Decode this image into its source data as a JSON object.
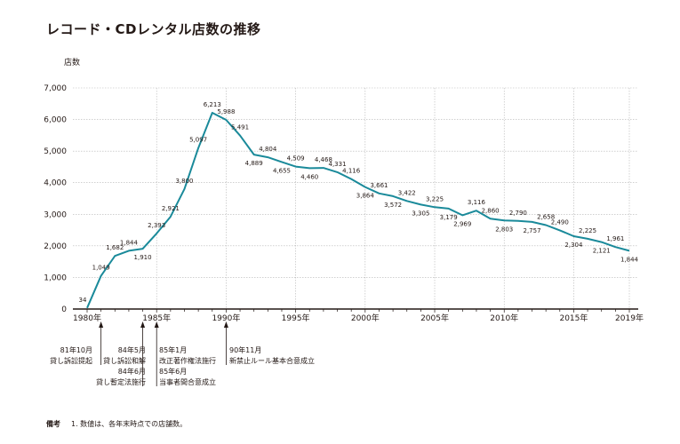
{
  "title": "レコード・CDレンタル店数の推移",
  "chart_data": {
    "type": "line",
    "ylabel": "店数",
    "ylim": [
      0,
      7000
    ],
    "yticks": [
      "0",
      "1,000",
      "2,000",
      "3,000",
      "4,000",
      "5,000",
      "6,000",
      "7,000"
    ],
    "xlim": [
      1980,
      2019
    ],
    "xticks": [
      {
        "year": 1980,
        "label": "1980年"
      },
      {
        "year": 1985,
        "label": "1985年"
      },
      {
        "year": 1990,
        "label": "1990年"
      },
      {
        "year": 1995,
        "label": "1995年"
      },
      {
        "year": 2000,
        "label": "2000年"
      },
      {
        "year": 2005,
        "label": "2005年"
      },
      {
        "year": 2010,
        "label": "2010年"
      },
      {
        "year": 2015,
        "label": "2015年"
      },
      {
        "year": 2019,
        "label": "2019年"
      }
    ],
    "grid": true,
    "line_color": "#1a8a9a",
    "points": [
      {
        "x": 1980,
        "y": 34,
        "label": "34",
        "pos": "above"
      },
      {
        "x": 1981,
        "y": 1049,
        "label": "1,049",
        "pos": "above"
      },
      {
        "x": 1982,
        "y": 1682,
        "label": "1,682",
        "pos": "above"
      },
      {
        "x": 1983,
        "y": 1844,
        "label": "1,844",
        "pos": "above"
      },
      {
        "x": 1984,
        "y": 1910,
        "label": "1,910",
        "pos": "below"
      },
      {
        "x": 1985,
        "y": 2393,
        "label": "2,393",
        "pos": "above"
      },
      {
        "x": 1986,
        "y": 2921,
        "label": "2,921",
        "pos": "above"
      },
      {
        "x": 1987,
        "y": 3800,
        "label": "3,800",
        "pos": "above"
      },
      {
        "x": 1988,
        "y": 5097,
        "label": "5,097",
        "pos": "above"
      },
      {
        "x": 1989,
        "y": 6213,
        "label": "6,213",
        "pos": "above"
      },
      {
        "x": 1990,
        "y": 5988,
        "label": "5,988",
        "pos": "above"
      },
      {
        "x": 1991,
        "y": 5491,
        "label": "5,491",
        "pos": "above"
      },
      {
        "x": 1992,
        "y": 4889,
        "label": "4,889",
        "pos": "below"
      },
      {
        "x": 1993,
        "y": 4804,
        "label": "4,804",
        "pos": "above"
      },
      {
        "x": 1994,
        "y": 4655,
        "label": "4,655",
        "pos": "below"
      },
      {
        "x": 1995,
        "y": 4509,
        "label": "4,509",
        "pos": "above"
      },
      {
        "x": 1996,
        "y": 4460,
        "label": "4,460",
        "pos": "below"
      },
      {
        "x": 1997,
        "y": 4468,
        "label": "4,468",
        "pos": "above"
      },
      {
        "x": 1998,
        "y": 4331,
        "label": "4,331",
        "pos": "above"
      },
      {
        "x": 1999,
        "y": 4116,
        "label": "4,116",
        "pos": "above"
      },
      {
        "x": 2000,
        "y": 3864,
        "label": "3,864",
        "pos": "below"
      },
      {
        "x": 2001,
        "y": 3661,
        "label": "3,661",
        "pos": "above"
      },
      {
        "x": 2002,
        "y": 3572,
        "label": "3,572",
        "pos": "below"
      },
      {
        "x": 2003,
        "y": 3422,
        "label": "3,422",
        "pos": "above"
      },
      {
        "x": 2004,
        "y": 3305,
        "label": "3,305",
        "pos": "below"
      },
      {
        "x": 2005,
        "y": 3225,
        "label": "3,225",
        "pos": "above"
      },
      {
        "x": 2006,
        "y": 3179,
        "label": "3,179",
        "pos": "below"
      },
      {
        "x": 2007,
        "y": 2969,
        "label": "2,969",
        "pos": "below"
      },
      {
        "x": 2008,
        "y": 3116,
        "label": "3,116",
        "pos": "above"
      },
      {
        "x": 2009,
        "y": 2860,
        "label": "2,860",
        "pos": "above"
      },
      {
        "x": 2010,
        "y": 2803,
        "label": "2,803",
        "pos": "below"
      },
      {
        "x": 2011,
        "y": 2790,
        "label": "2,790",
        "pos": "above"
      },
      {
        "x": 2012,
        "y": 2757,
        "label": "2,757",
        "pos": "below"
      },
      {
        "x": 2013,
        "y": 2658,
        "label": "2,658",
        "pos": "above"
      },
      {
        "x": 2014,
        "y": 2490,
        "label": "2,490",
        "pos": "above"
      },
      {
        "x": 2015,
        "y": 2304,
        "label": "2,304",
        "pos": "below"
      },
      {
        "x": 2016,
        "y": 2225,
        "label": "2,225",
        "pos": "above"
      },
      {
        "x": 2017,
        "y": 2121,
        "label": "2,121",
        "pos": "below"
      },
      {
        "x": 2018,
        "y": 1961,
        "label": "1,961",
        "pos": "above"
      },
      {
        "x": 2019,
        "y": 1844,
        "label": "1,844",
        "pos": "below"
      }
    ],
    "annotations": [
      {
        "year": 1981,
        "lines": [
          "81年10月",
          "貸し訴訟提起"
        ]
      },
      {
        "year": 1984,
        "lines": [
          "84年5月",
          "貸し訴訟和解",
          "84年6月",
          "貸し暫定法施行"
        ]
      },
      {
        "year": 1985,
        "lines": [
          "85年1月",
          "改正著作権法施行",
          "85年6月",
          "当事者間合意成立"
        ]
      },
      {
        "year": 1990,
        "lines": [
          "90年11月",
          "新禁止ルール基本合意成立"
        ]
      }
    ]
  },
  "footnote": {
    "key": "備考",
    "text": "1. 数値は、各年末時点での店舗数。"
  }
}
